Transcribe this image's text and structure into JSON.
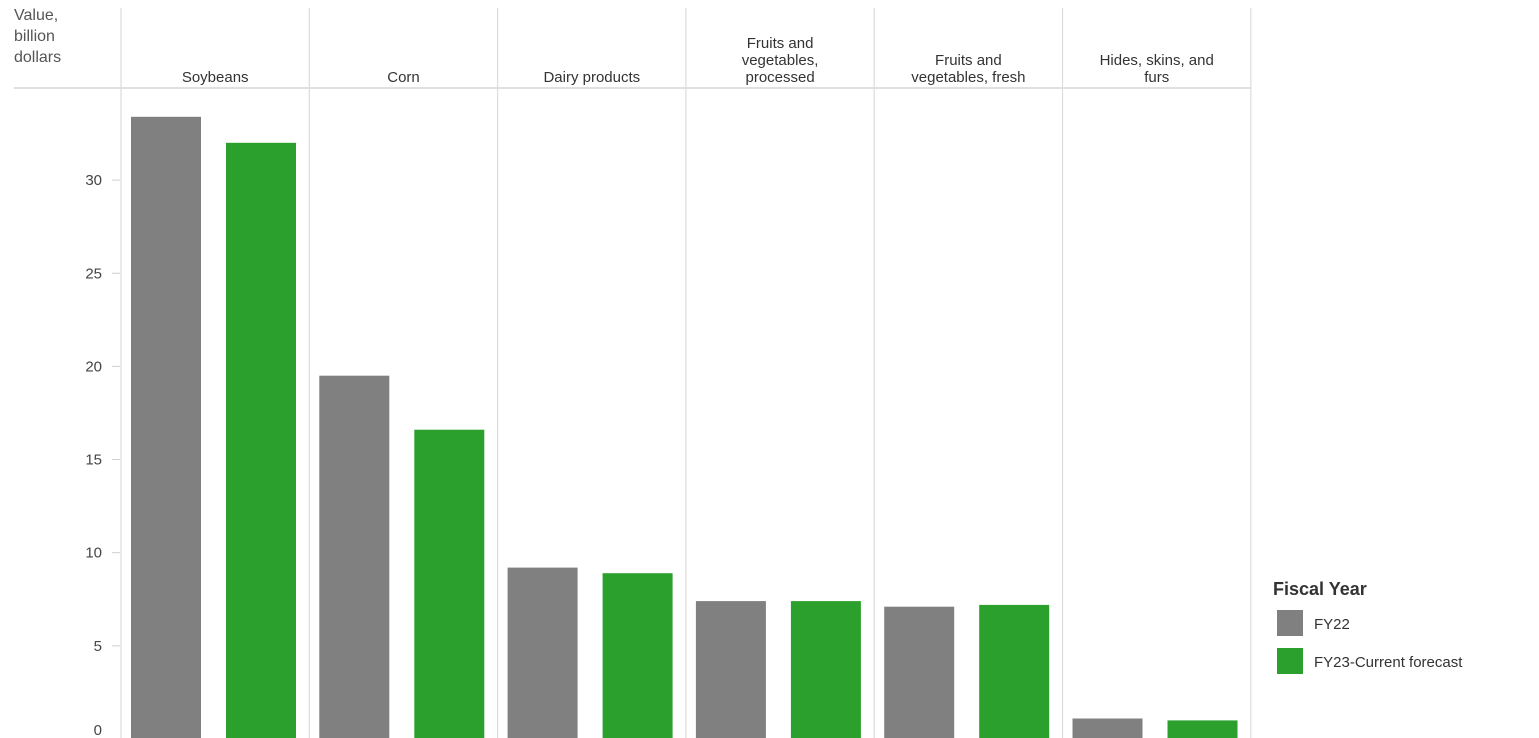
{
  "chart_data": {
    "type": "bar",
    "ylabel": [
      "Value,",
      "billion",
      "dollars"
    ],
    "categories": [
      {
        "name": "Soybeans",
        "lines": [
          "Soybeans"
        ]
      },
      {
        "name": "Corn",
        "lines": [
          "Corn"
        ]
      },
      {
        "name": "Dairy products",
        "lines": [
          "Dairy products"
        ]
      },
      {
        "name": "Fruits and vegetables, processed",
        "lines": [
          "Fruits and",
          "vegetables,",
          "processed"
        ]
      },
      {
        "name": "Fruits and vegetables, fresh",
        "lines": [
          "Fruits and",
          "vegetables, fresh"
        ]
      },
      {
        "name": "Hides, skins, and furs",
        "lines": [
          "Hides, skins, and",
          "furs"
        ]
      }
    ],
    "series": [
      {
        "name": "FY22",
        "color": "#808080",
        "values": [
          33.4,
          19.5,
          9.2,
          7.4,
          7.1,
          1.1
        ]
      },
      {
        "name": "FY23-Current forecast",
        "color": "#2ca02c",
        "values": [
          32.0,
          16.6,
          8.9,
          7.4,
          7.2,
          1.0
        ]
      }
    ],
    "ylim": [
      0,
      35
    ],
    "yticks": [
      0,
      5,
      10,
      15,
      20,
      25,
      30
    ],
    "legend": {
      "title": "Fiscal Year",
      "placement": "right"
    },
    "grid": false
  }
}
